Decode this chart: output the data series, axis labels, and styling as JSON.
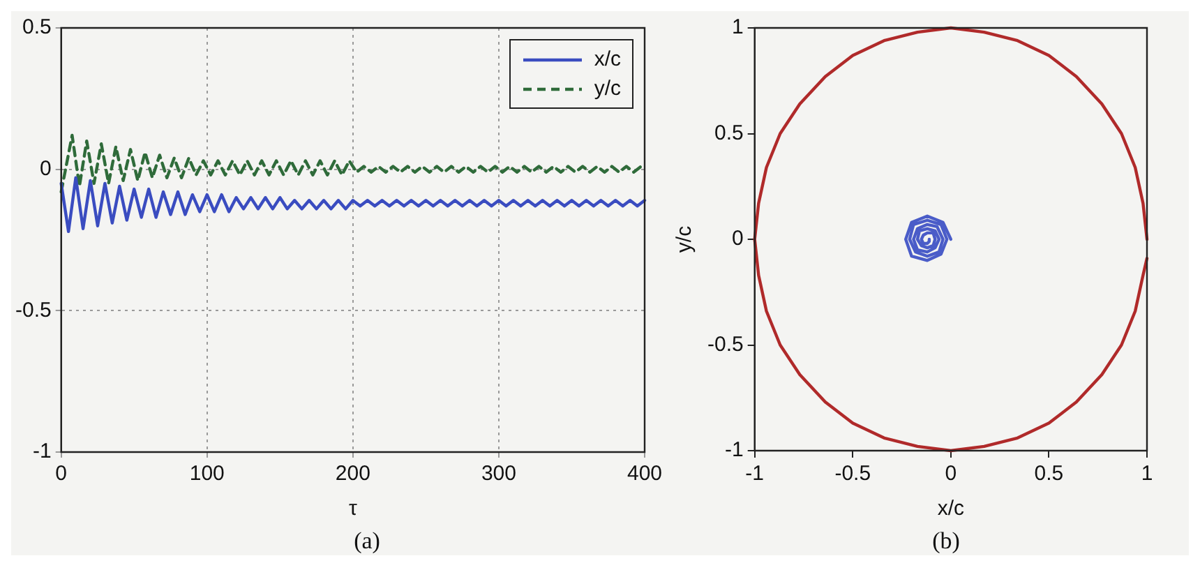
{
  "chart_data": [
    {
      "type": "line",
      "xlabel": "τ",
      "annotations": [
        "(a)"
      ],
      "xlim": [
        0,
        400
      ],
      "xticks": [
        0,
        100,
        200,
        300,
        400
      ],
      "ylim": [
        -1,
        0.5
      ],
      "yticks": [
        -1,
        -0.5,
        0,
        0.5
      ],
      "grid": true,
      "legend": "top right",
      "marker": "none",
      "series": [
        {
          "name": "x/c",
          "color": "#3a4cc0",
          "line_style": "solid",
          "x": [
            0,
            5,
            10,
            15,
            20,
            25,
            30,
            35,
            40,
            45,
            50,
            55,
            60,
            65,
            70,
            75,
            80,
            85,
            90,
            95,
            100,
            105,
            110,
            115,
            120,
            125,
            130,
            135,
            140,
            145,
            150,
            155,
            160,
            165,
            170,
            175,
            180,
            185,
            190,
            195,
            200,
            205,
            210,
            215,
            220,
            225,
            230,
            235,
            240,
            245,
            250,
            255,
            260,
            265,
            270,
            275,
            280,
            285,
            290,
            295,
            300,
            305,
            310,
            315,
            320,
            325,
            330,
            335,
            340,
            345,
            350,
            355,
            360,
            365,
            370,
            375,
            380,
            385,
            390,
            395,
            400
          ],
          "values": [
            -0.05,
            -0.22,
            -0.03,
            -0.21,
            -0.04,
            -0.2,
            -0.05,
            -0.19,
            -0.06,
            -0.18,
            -0.07,
            -0.17,
            -0.07,
            -0.17,
            -0.08,
            -0.16,
            -0.08,
            -0.16,
            -0.09,
            -0.15,
            -0.09,
            -0.15,
            -0.09,
            -0.15,
            -0.1,
            -0.14,
            -0.1,
            -0.14,
            -0.1,
            -0.14,
            -0.1,
            -0.14,
            -0.11,
            -0.14,
            -0.11,
            -0.14,
            -0.11,
            -0.14,
            -0.11,
            -0.14,
            -0.11,
            -0.13,
            -0.11,
            -0.13,
            -0.11,
            -0.13,
            -0.11,
            -0.13,
            -0.11,
            -0.13,
            -0.11,
            -0.13,
            -0.11,
            -0.13,
            -0.11,
            -0.13,
            -0.11,
            -0.13,
            -0.11,
            -0.13,
            -0.11,
            -0.13,
            -0.11,
            -0.13,
            -0.11,
            -0.13,
            -0.11,
            -0.13,
            -0.11,
            -0.13,
            -0.11,
            -0.13,
            -0.11,
            -0.13,
            -0.11,
            -0.13,
            -0.11,
            -0.13,
            -0.11,
            -0.13,
            -0.11
          ]
        },
        {
          "name": "y/c",
          "color": "#2f6b3a",
          "line_style": "dashed",
          "x": [
            0,
            7.5,
            12.5,
            17.5,
            22.5,
            27.5,
            32.5,
            37.5,
            42.5,
            47.5,
            52.5,
            57.5,
            62.5,
            67.5,
            72.5,
            77.5,
            82.5,
            87.5,
            92.5,
            97.5,
            102.5,
            107.5,
            112.5,
            117.5,
            122.5,
            127.5,
            132.5,
            137.5,
            142.5,
            147.5,
            152.5,
            157.5,
            162.5,
            167.5,
            172.5,
            177.5,
            182.5,
            187.5,
            192.5,
            197.5,
            202.5,
            207.5,
            212.5,
            217.5,
            222.5,
            227.5,
            232.5,
            237.5,
            242.5,
            247.5,
            252.5,
            257.5,
            262.5,
            267.5,
            272.5,
            277.5,
            282.5,
            287.5,
            292.5,
            297.5,
            302.5,
            307.5,
            312.5,
            317.5,
            322.5,
            327.5,
            332.5,
            337.5,
            342.5,
            347.5,
            352.5,
            357.5,
            362.5,
            367.5,
            372.5,
            377.5,
            382.5,
            387.5,
            392.5,
            397.5
          ],
          "values": [
            -0.08,
            0.12,
            -0.06,
            0.1,
            -0.05,
            0.09,
            -0.05,
            0.08,
            -0.04,
            0.07,
            -0.04,
            0.06,
            -0.03,
            0.05,
            -0.03,
            0.04,
            -0.03,
            0.04,
            -0.02,
            0.03,
            -0.02,
            0.03,
            -0.02,
            0.03,
            -0.02,
            0.03,
            -0.02,
            0.03,
            -0.02,
            0.03,
            -0.02,
            0.03,
            -0.02,
            0.03,
            -0.02,
            0.03,
            -0.02,
            0.03,
            -0.02,
            0.03,
            -0.01,
            0.01,
            -0.01,
            0.01,
            -0.01,
            0.01,
            -0.01,
            0.01,
            -0.01,
            0.01,
            -0.01,
            0.01,
            -0.01,
            0.01,
            -0.01,
            0.01,
            -0.01,
            0.01,
            -0.01,
            0.01,
            -0.01,
            0.01,
            -0.01,
            0.01,
            -0.01,
            0.01,
            -0.01,
            0.01,
            -0.01,
            0.01,
            -0.01,
            0.01,
            -0.01,
            0.01,
            -0.01,
            0.01,
            -0.01,
            0.01,
            -0.01,
            0.01
          ]
        }
      ]
    },
    {
      "type": "line",
      "xlabel": "x/c",
      "ylabel": "y/c",
      "annotations": [
        "(b)"
      ],
      "xlim": [
        -1,
        1
      ],
      "xticks": [
        -1,
        -0.5,
        0,
        0.5,
        1
      ],
      "ylim": [
        -1,
        1
      ],
      "yticks": [
        -1,
        -0.5,
        0,
        0.5,
        1
      ],
      "marker": "none",
      "series": [
        {
          "color": "#b02a2a",
          "x": [
            1,
            0.98,
            0.94,
            0.87,
            0.77,
            0.64,
            0.5,
            0.34,
            0.17,
            0,
            -0.17,
            -0.34,
            -0.5,
            -0.64,
            -0.77,
            -0.87,
            -0.94,
            -0.98,
            -1,
            -0.98,
            -0.94,
            -0.87,
            -0.77,
            -0.64,
            -0.5,
            -0.34,
            -0.17,
            0,
            0.17,
            0.34,
            0.5,
            0.64,
            0.77,
            0.87,
            0.94,
            0.98,
            1
          ],
          "values": [
            0,
            0.17,
            0.34,
            0.5,
            0.64,
            0.77,
            0.87,
            0.94,
            0.98,
            1,
            0.98,
            0.94,
            0.87,
            0.77,
            0.64,
            0.5,
            0.34,
            0.17,
            0,
            -0.17,
            -0.34,
            -0.5,
            -0.64,
            -0.77,
            -0.87,
            -0.94,
            -0.98,
            -1,
            -0.98,
            -0.94,
            -0.87,
            -0.77,
            -0.64,
            -0.5,
            -0.34,
            -0.17,
            -0.09
          ]
        },
        {
          "color": "#4a5cc8",
          "x": [
            0,
            -0.04,
            -0.12,
            -0.2,
            -0.23,
            -0.2,
            -0.12,
            -0.05,
            -0.02,
            -0.05,
            -0.12,
            -0.19,
            -0.21,
            -0.18,
            -0.12,
            -0.06,
            -0.04,
            -0.07,
            -0.12,
            -0.17,
            -0.19,
            -0.17,
            -0.12,
            -0.08,
            -0.06,
            -0.08,
            -0.12,
            -0.16,
            -0.17,
            -0.15,
            -0.12,
            -0.09,
            -0.08,
            -0.09,
            -0.12,
            -0.14,
            -0.15,
            -0.14,
            -0.12,
            -0.11,
            -0.11
          ],
          "values": [
            0,
            0.08,
            0.11,
            0.08,
            0,
            -0.08,
            -0.1,
            -0.07,
            0,
            0.07,
            0.09,
            0.07,
            0,
            -0.06,
            -0.08,
            -0.06,
            0,
            0.06,
            0.07,
            0.05,
            0,
            -0.05,
            -0.06,
            -0.04,
            0,
            0.04,
            0.05,
            0.04,
            0,
            -0.03,
            -0.04,
            -0.03,
            0,
            0.03,
            0.03,
            0.02,
            0,
            -0.02,
            -0.02,
            -0.01,
            0
          ]
        }
      ]
    }
  ]
}
